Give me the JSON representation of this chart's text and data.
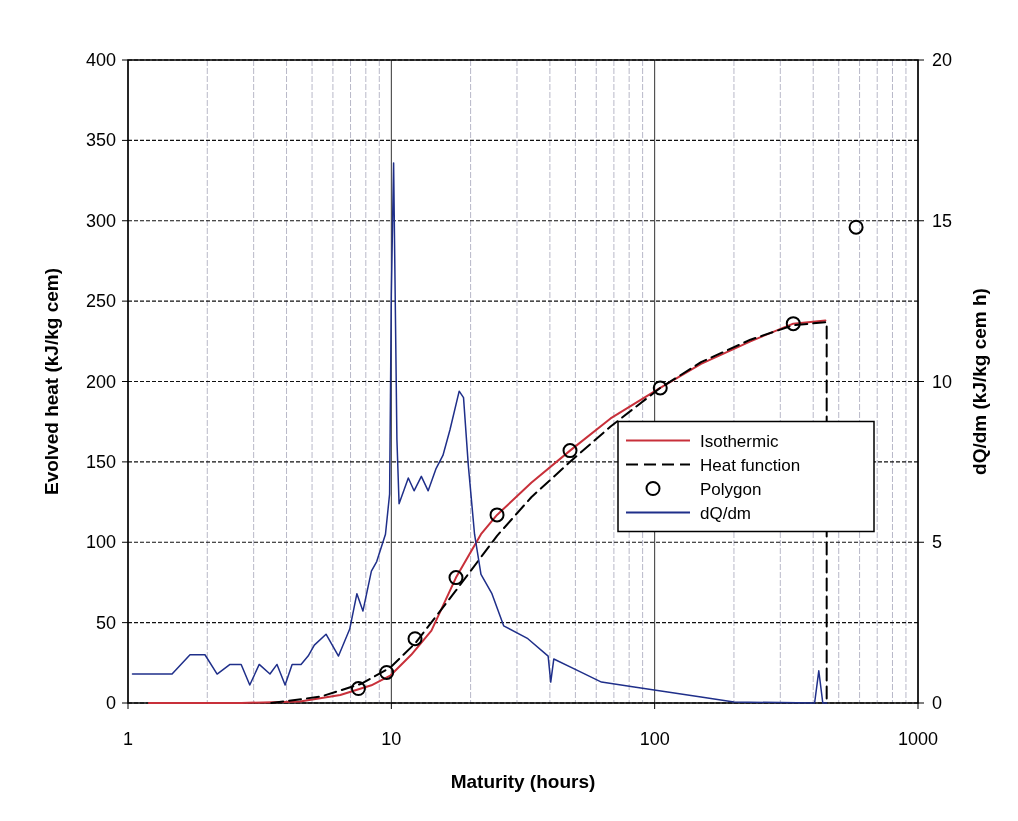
{
  "chart_data": {
    "type": "line",
    "xlabel": "Maturity (hours)",
    "ylabel": "Evolved heat (kJ/kg cem)",
    "y2label": "dQ/dm (kJ/kg cem h)",
    "log": "x",
    "grid": true,
    "legend": "right",
    "xlim": [
      1,
      1000
    ],
    "xticks": [
      1,
      10,
      100,
      1000
    ],
    "ylim": [
      0,
      400
    ],
    "yticks": [
      0,
      50,
      100,
      150,
      200,
      250,
      300,
      350,
      400
    ],
    "y2lim": [
      0,
      20
    ],
    "y2ticks": [
      0,
      5,
      10,
      15,
      20
    ],
    "series": [
      {
        "name": "Isothermic",
        "color": "#c8303a",
        "line_style": "solid",
        "x": [
          1.2,
          2.7,
          4.5,
          6.4,
          8.4,
          9.9,
          11.9,
          14.2,
          17.6,
          21.9,
          25.2,
          34,
          47.7,
          68,
          105,
          150,
          231,
          336,
          445
        ],
        "values": [
          0,
          0,
          1,
          5,
          11,
          17,
          30,
          45,
          78,
          105,
          117,
          137,
          157,
          177,
          196,
          211,
          225,
          236,
          238
        ]
      },
      {
        "name": "Heat function",
        "color": "#000000",
        "line_style": "dashed",
        "x": [
          3.5,
          5.4,
          7.7,
          9.9,
          12.3,
          17.6,
          25.2,
          34,
          47.7,
          68,
          105,
          150,
          231,
          336,
          450,
          450
        ],
        "values": [
          0,
          4,
          12,
          22,
          37,
          70,
          104,
          128,
          150,
          172,
          196,
          212,
          226,
          235,
          237,
          0
        ]
      },
      {
        "name": "Polygon",
        "type": "scatter",
        "color": "#000000",
        "marker": "circle",
        "x": [
          7.5,
          9.6,
          12.3,
          17.6,
          25.2,
          47.7,
          105,
          336,
          582
        ],
        "values": [
          9,
          19,
          40,
          78,
          117,
          157,
          196,
          236,
          296
        ]
      },
      {
        "name": "dQ/dm",
        "axis": "y2",
        "color": "#1f2f8a",
        "line_style": "solid",
        "x": [
          1.04,
          1.47,
          1.72,
          1.96,
          2.18,
          2.44,
          2.69,
          2.9,
          3.15,
          3.46,
          3.68,
          3.95,
          4.2,
          4.54,
          4.83,
          5.1,
          5.65,
          6.3,
          6.95,
          7.4,
          7.8,
          8.4,
          8.8,
          9.5,
          9.85,
          10,
          10.2,
          10.5,
          10.7,
          11.6,
          12.2,
          13,
          13.8,
          14.8,
          15.7,
          16.7,
          18.1,
          18.8,
          19.6,
          20.7,
          21.9,
          24.1,
          26.7,
          33,
          39.4,
          40.3,
          41.4,
          49.5,
          62.8,
          83.6,
          112,
          150,
          200,
          405,
          420,
          435,
          450
        ],
        "values": [
          0.9,
          0.9,
          1.5,
          1.5,
          0.9,
          1.2,
          1.2,
          0.56,
          1.2,
          0.9,
          1.2,
          0.56,
          1.2,
          1.2,
          1.46,
          1.8,
          2.14,
          1.46,
          2.3,
          3.4,
          2.86,
          4.1,
          4.4,
          5.25,
          6.5,
          12.7,
          16.8,
          8.2,
          6.2,
          7.0,
          6.6,
          7.05,
          6.6,
          7.3,
          7.7,
          8.5,
          9.7,
          9.5,
          7.4,
          5.25,
          4.0,
          3.4,
          2.4,
          2.0,
          1.46,
          0.65,
          1.37,
          1.06,
          0.65,
          0.5,
          0.34,
          0.19,
          0.03,
          0,
          1.0,
          0,
          0
        ]
      }
    ]
  }
}
